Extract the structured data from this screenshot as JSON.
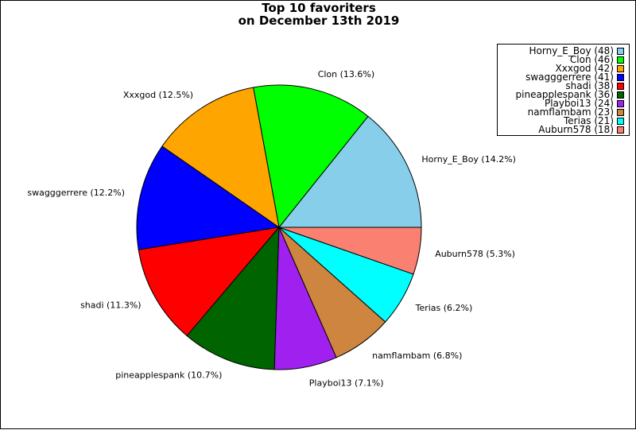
{
  "chart_data": {
    "type": "pie",
    "title": [
      "Top 10 favoriters",
      "on December 13th 2019"
    ],
    "legend_position": "top-right",
    "slices": [
      {
        "label": "Horny_E_Boy",
        "value": 48,
        "percent": "14.2%",
        "color": "#87ceeb"
      },
      {
        "label": "Clon",
        "value": 46,
        "percent": "13.6%",
        "color": "#00ff00"
      },
      {
        "label": "Xxxgod",
        "value": 42,
        "percent": "12.5%",
        "color": "#ffa500"
      },
      {
        "label": "swagggerrere",
        "value": 41,
        "percent": "12.2%",
        "color": "#0000ff"
      },
      {
        "label": "shadi",
        "value": 38,
        "percent": "11.3%",
        "color": "#ff0000"
      },
      {
        "label": "pineapplespank",
        "value": 36,
        "percent": "10.7%",
        "color": "#006400"
      },
      {
        "label": "Playboi13",
        "value": 24,
        "percent": "7.1%",
        "color": "#a020f0"
      },
      {
        "label": "namflambam",
        "value": 23,
        "percent": "6.8%",
        "color": "#cd853f"
      },
      {
        "label": "Terias",
        "value": 21,
        "percent": "6.2%",
        "color": "#00ffff"
      },
      {
        "label": "Auburn578",
        "value": 18,
        "percent": "5.3%",
        "color": "#fa8072"
      }
    ]
  }
}
